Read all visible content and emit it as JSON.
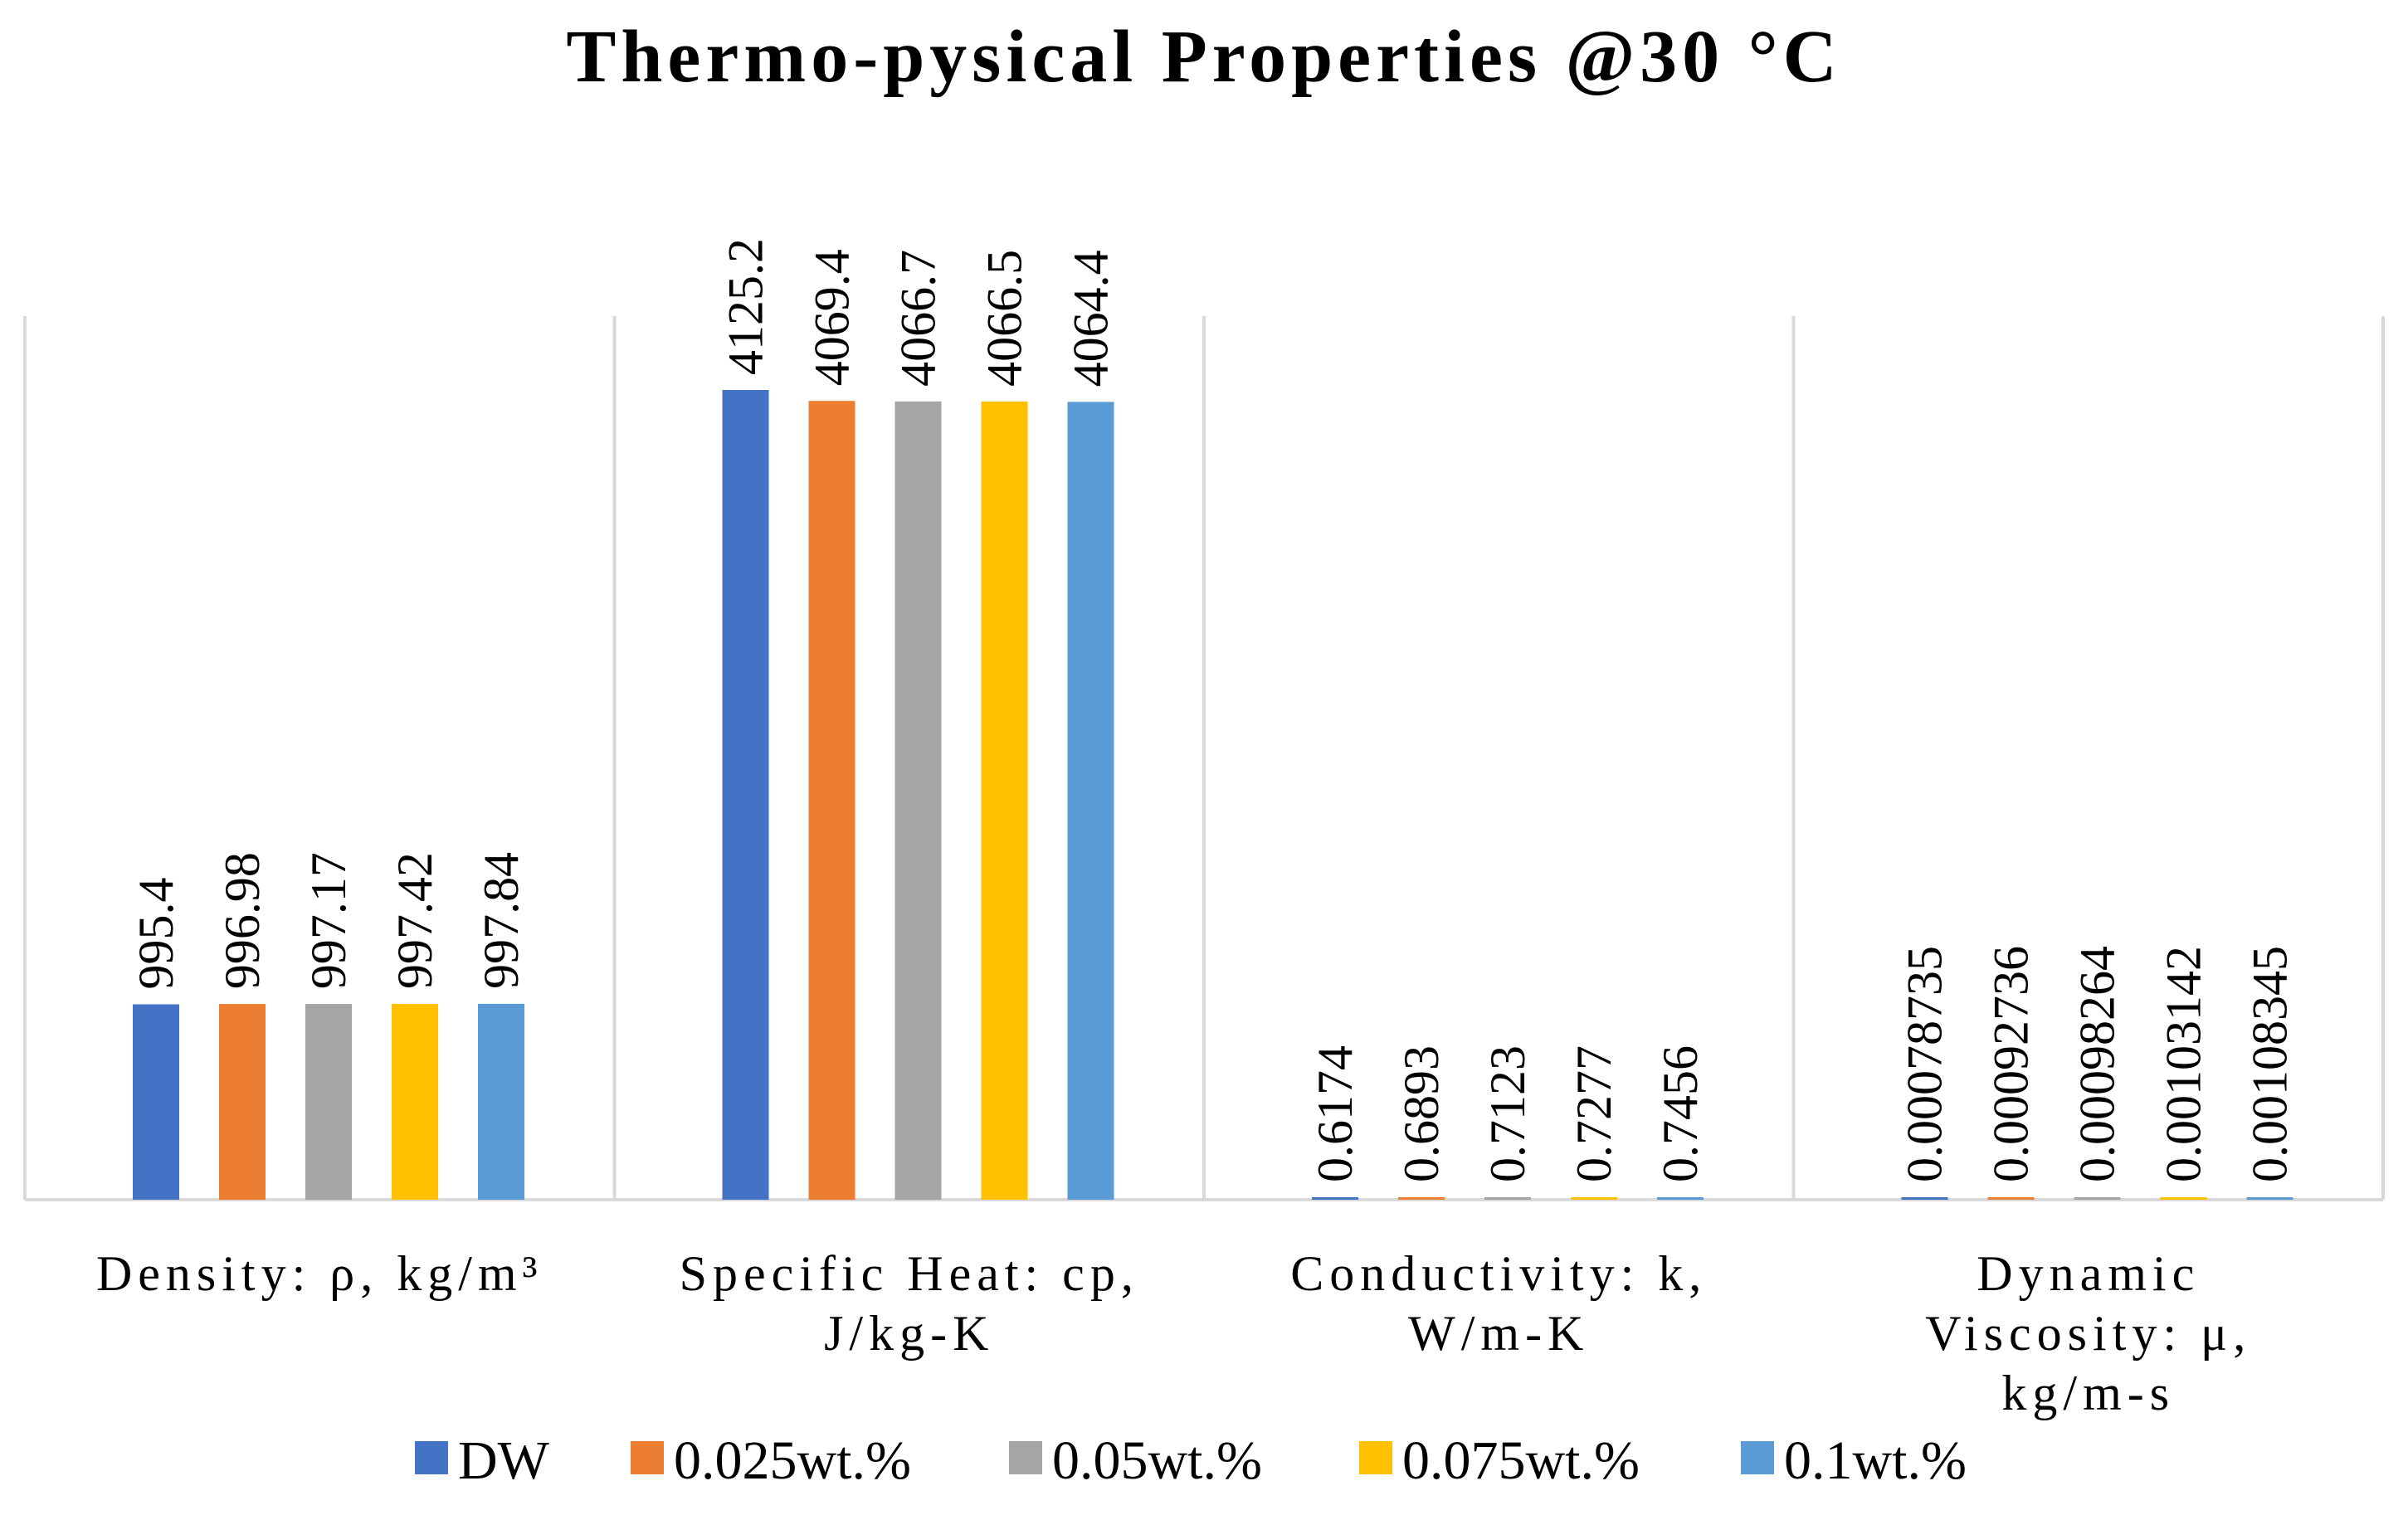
{
  "chart_data": {
    "type": "bar",
    "title": "Thermo-pysical Properties @30 °C",
    "categories": [
      [
        "Density: ρ, kg/m³"
      ],
      [
        "Specific Heat: cp,",
        "J/kg-K"
      ],
      [
        "Conductivity: k,",
        "W/m-K"
      ],
      [
        "Dynamic",
        "Viscosity: μ,",
        "kg/m-s"
      ]
    ],
    "series": [
      {
        "name": "DW",
        "color": "#4472C4",
        "labels": [
          "995.4",
          "4125.2",
          "0.6174",
          "0.00078735"
        ],
        "values": [
          995.4,
          4125.2,
          0.6174,
          0.00078735
        ]
      },
      {
        "name": "0.025wt.%",
        "color": "#ED7D31",
        "labels": [
          "996.98",
          "4069.4",
          "0.6893",
          "0.00092736"
        ],
        "values": [
          996.98,
          4069.4,
          0.6893,
          0.00092736
        ]
      },
      {
        "name": "0.05wt.%",
        "color": "#A5A5A5",
        "labels": [
          "997.17",
          "4066.7",
          "0.7123",
          "0.00098264"
        ],
        "values": [
          997.17,
          4066.7,
          0.7123,
          0.00098264
        ]
      },
      {
        "name": "0.075wt.%",
        "color": "#FFC000",
        "labels": [
          "997.42",
          "4066.5",
          "0.7277",
          "0.00103142"
        ],
        "values": [
          997.42,
          4066.5,
          0.7277,
          0.00103142
        ]
      },
      {
        "name": "0.1wt.%",
        "color": "#5B9BD5",
        "labels": [
          "997.84",
          "4064.4",
          "0.7456",
          "0.00108345"
        ],
        "values": [
          997.84,
          4064.4,
          0.7456,
          0.00108345
        ]
      }
    ],
    "ylim": [
      0,
      4700
    ],
    "xlabel": "",
    "ylabel": "",
    "grid": false,
    "legend": "bottom"
  }
}
